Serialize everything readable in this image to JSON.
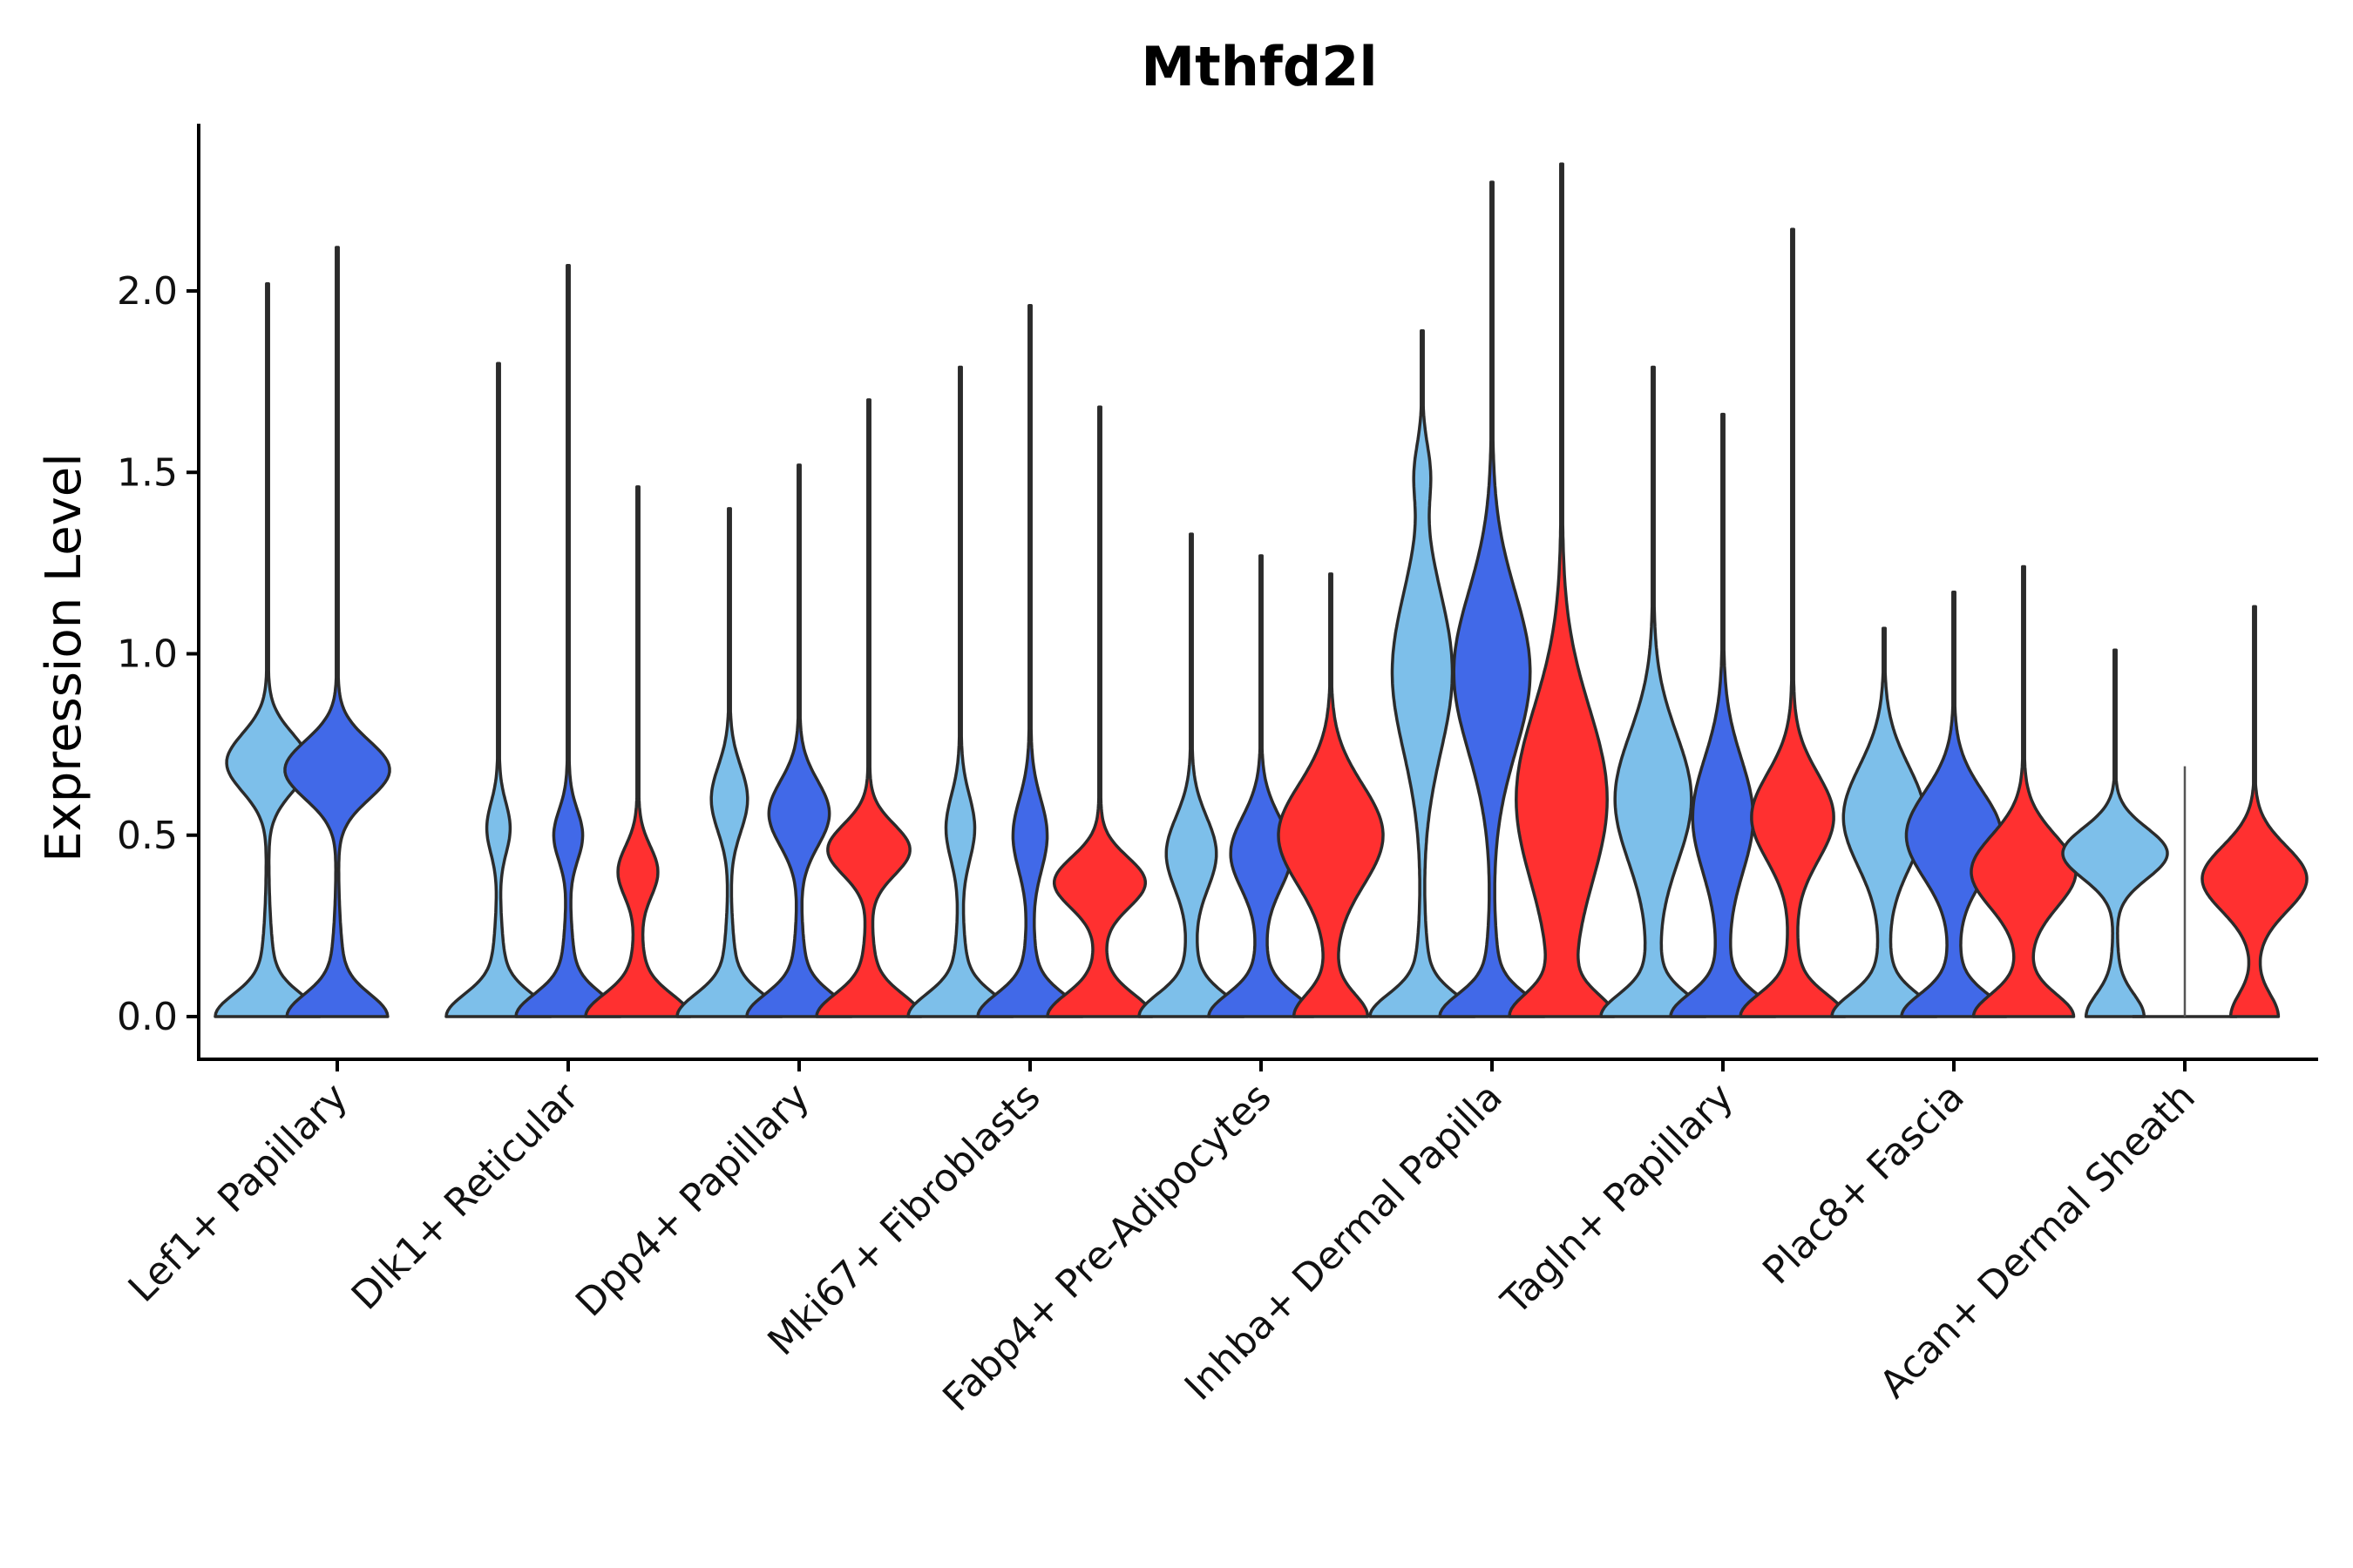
{
  "chart_data": {
    "type": "violin",
    "title": "Mthfd2l",
    "xlabel": "",
    "ylabel": "Expression Level",
    "ylim": [
      -0.12,
      2.45
    ],
    "yticks": [
      "0.0",
      "0.5",
      "1.0",
      "1.5",
      "2.0"
    ],
    "ytick_values": [
      0,
      0.5,
      1.0,
      1.5,
      2.0
    ],
    "categories": [
      "Lef1+ Papillary",
      "Dlk1+ Reticular",
      "Dpp4+ Papillary",
      "Mki67+ Fibroblasts",
      "Fabp4+ Pre-Adipocytes",
      "Inhba+ Dermal Papilla",
      "Tagln+ Papillary",
      "Plac8+ Fascia",
      "Acan+ Dermal Sheath"
    ],
    "series_colors": [
      "#7dbfea",
      "#4169e8",
      "#ff3030"
    ],
    "violins": [
      {
        "category": 0,
        "series": 0,
        "max": 2.02,
        "modes": [
          [
            0.7,
            0.3,
            0.08
          ]
        ]
      },
      {
        "category": 0,
        "series": 1,
        "max": 2.12,
        "modes": [
          [
            0.68,
            0.4,
            0.08
          ]
        ]
      },
      {
        "category": 1,
        "series": 0,
        "max": 1.8,
        "modes": [
          [
            0.52,
            0.08,
            0.07
          ]
        ]
      },
      {
        "category": 1,
        "series": 1,
        "max": 2.07,
        "modes": [
          [
            0.5,
            0.1,
            0.07
          ]
        ]
      },
      {
        "category": 1,
        "series": 2,
        "max": 1.46,
        "modes": [
          [
            0.4,
            0.14,
            0.07
          ]
        ]
      },
      {
        "category": 2,
        "series": 0,
        "max": 1.4,
        "modes": [
          [
            0.6,
            0.13,
            0.09
          ]
        ]
      },
      {
        "category": 2,
        "series": 1,
        "max": 1.52,
        "modes": [
          [
            0.56,
            0.22,
            0.09
          ]
        ]
      },
      {
        "category": 2,
        "series": 2,
        "max": 1.7,
        "modes": [
          [
            0.46,
            0.3,
            0.07
          ]
        ]
      },
      {
        "category": 3,
        "series": 0,
        "max": 1.79,
        "modes": [
          [
            0.52,
            0.1,
            0.09
          ]
        ]
      },
      {
        "category": 3,
        "series": 1,
        "max": 1.96,
        "modes": [
          [
            0.5,
            0.12,
            0.1
          ]
        ]
      },
      {
        "category": 3,
        "series": 2,
        "max": 1.68,
        "modes": [
          [
            0.37,
            0.33,
            0.07
          ]
        ]
      },
      {
        "category": 4,
        "series": 0,
        "max": 1.33,
        "modes": [
          [
            0.45,
            0.18,
            0.1
          ]
        ]
      },
      {
        "category": 4,
        "series": 1,
        "max": 1.27,
        "modes": [
          [
            0.45,
            0.22,
            0.1
          ]
        ]
      },
      {
        "category": 4,
        "series": 2,
        "max": 1.22,
        "modes": [
          [
            0.5,
            0.55,
            0.14
          ]
        ]
      },
      {
        "category": 5,
        "series": 0,
        "max": 1.89,
        "modes": [
          [
            0.95,
            0.22,
            0.22
          ],
          [
            1.5,
            0.05,
            0.08
          ]
        ]
      },
      {
        "category": 5,
        "series": 1,
        "max": 2.3,
        "modes": [
          [
            0.95,
            0.28,
            0.22
          ]
        ]
      },
      {
        "category": 5,
        "series": 2,
        "max": 2.35,
        "modes": [
          [
            0.6,
            0.35,
            0.25
          ]
        ]
      },
      {
        "category": 6,
        "series": 0,
        "max": 1.79,
        "modes": [
          [
            0.6,
            0.28,
            0.18
          ]
        ]
      },
      {
        "category": 6,
        "series": 1,
        "max": 1.66,
        "modes": [
          [
            0.55,
            0.22,
            0.16
          ]
        ]
      },
      {
        "category": 6,
        "series": 2,
        "max": 2.17,
        "modes": [
          [
            0.55,
            0.3,
            0.12
          ]
        ]
      },
      {
        "category": 7,
        "series": 0,
        "max": 1.07,
        "modes": [
          [
            0.55,
            0.3,
            0.14
          ]
        ]
      },
      {
        "category": 7,
        "series": 1,
        "max": 1.17,
        "modes": [
          [
            0.5,
            0.35,
            0.12
          ]
        ]
      },
      {
        "category": 7,
        "series": 2,
        "max": 1.24,
        "modes": [
          [
            0.4,
            0.4,
            0.1
          ]
        ]
      },
      {
        "category": 8,
        "series": 0,
        "max": 1.01,
        "modes": [
          [
            0.45,
            0.7,
            0.07
          ]
        ]
      },
      {
        "category": 8,
        "series": 1,
        "max": 0.69,
        "modes": [],
        "flat": true
      },
      {
        "category": 8,
        "series": 2,
        "max": 1.13,
        "modes": [
          [
            0.38,
            0.85,
            0.09
          ]
        ]
      }
    ]
  }
}
